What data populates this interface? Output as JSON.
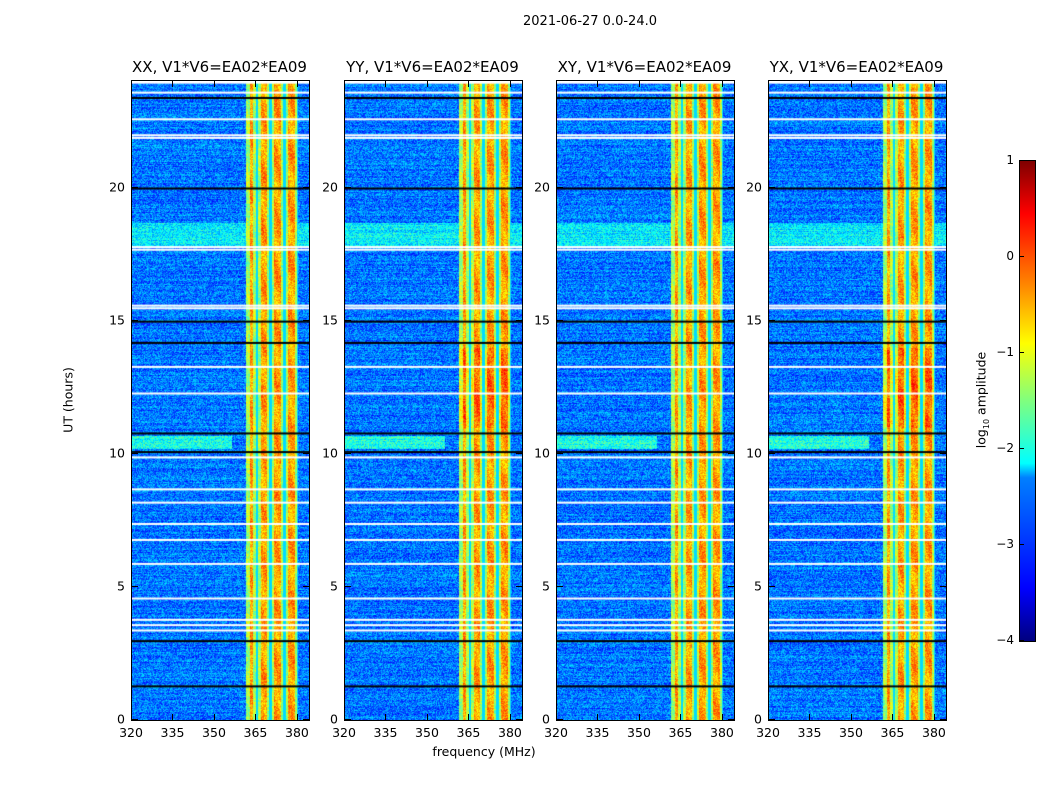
{
  "chart_data": {
    "type": "heatmap",
    "title": "2021-06-27 0.0-24.0",
    "xlabel": "frequency (MHz)",
    "ylabel": "UT (hours)",
    "xlim": [
      320,
      384
    ],
    "ylim": [
      0,
      24
    ],
    "xticks": [
      "320",
      "335",
      "350",
      "365",
      "380"
    ],
    "xtick_values": [
      320,
      335,
      350,
      365,
      380
    ],
    "yticks": [
      "0",
      "5",
      "10",
      "15",
      "20"
    ],
    "ytick_values": [
      0,
      5,
      10,
      15,
      20
    ],
    "panels": [
      {
        "title": "XX, V1*V6=EA02*EA09",
        "seed": 1
      },
      {
        "title": "YY, V1*V6=EA02*EA09",
        "seed": 2
      },
      {
        "title": "XY, V1*V6=EA02*EA09",
        "seed": 3
      },
      {
        "title": "YX, V1*V6=EA02*EA09",
        "seed": 4
      }
    ],
    "high_amplitude_band_mhz": [
      361,
      380
    ],
    "band_channel_edges_mhz": [
      365,
      370,
      375,
      380
    ],
    "background_log_amplitude": -2.8,
    "band_log_amplitude": -0.6,
    "flagged_white_hours": [
      23.6,
      22.6,
      22.0,
      21.9,
      17.8,
      17.7,
      15.6,
      15.5,
      13.3,
      12.3,
      9.9,
      8.7,
      8.2,
      7.4,
      6.8,
      5.9,
      4.6,
      3.8,
      3.6,
      3.4
    ],
    "flagged_black_hours": [
      23.4,
      20.0,
      15.0,
      14.2,
      10.8,
      10.1,
      3.0,
      1.3
    ],
    "colorbar": {
      "label_prefix": "log",
      "label_subscript": "10",
      "label_suffix": " amplitude",
      "range": [
        -4,
        1
      ],
      "ticks": [
        "1",
        "0",
        "−1",
        "−2",
        "−3",
        "−4"
      ],
      "tick_values": [
        1,
        0,
        -1,
        -2,
        -3,
        -4
      ],
      "colormap": "jet"
    }
  }
}
